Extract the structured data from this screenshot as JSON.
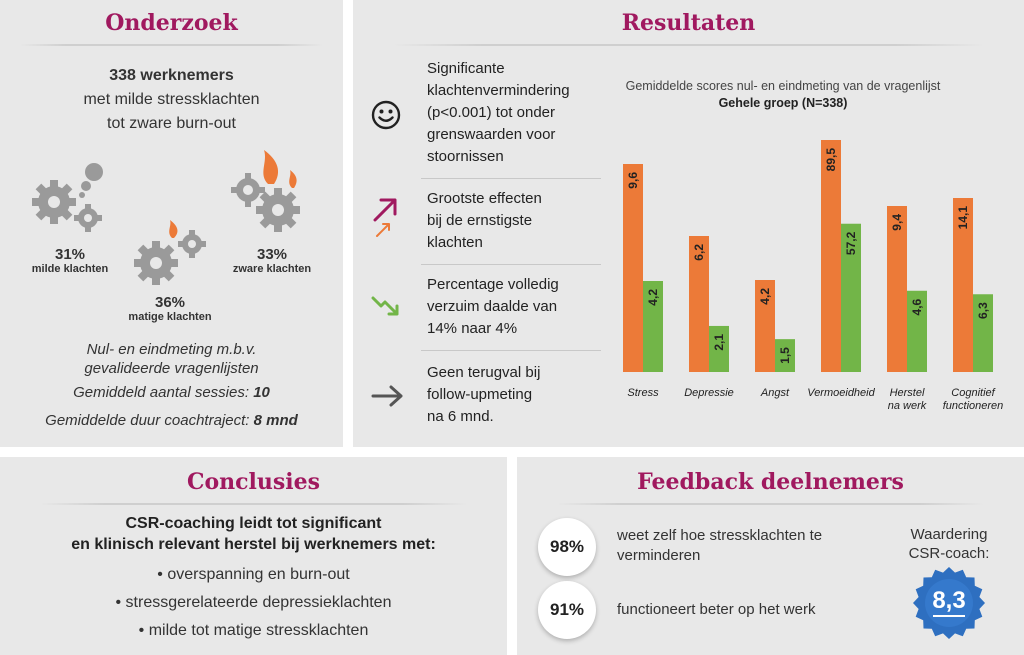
{
  "onderzoek": {
    "title": "Onderzoek",
    "count": "338 werknemers",
    "desc_line1": "met milde stressklachten",
    "desc_line2": "tot zware burn-out",
    "groups": [
      {
        "pct": "31%",
        "label": "milde klachten"
      },
      {
        "pct": "36%",
        "label": "matige klachten"
      },
      {
        "pct": "33%",
        "label": "zware klachten"
      }
    ],
    "method_line1": "Nul- en eindmeting m.b.v.",
    "method_line2": "gevalideerde vragenlijsten",
    "sessions_label": "Gemiddeld aantal sessies: ",
    "sessions_value": "10",
    "duration_label": "Gemiddelde duur coachtraject: ",
    "duration_value": "8 mnd"
  },
  "resultaten": {
    "title": "Resultaten",
    "items": [
      {
        "icon": "smiley-icon",
        "lines": [
          "Significante",
          "klachtenvermindering",
          "(p<0.001) tot onder",
          "grenswaarden voor",
          "stoornissen"
        ]
      },
      {
        "icon": "arrow-up-right-icon",
        "lines": [
          "Grootste effecten",
          "bij de ernstigste",
          "klachten"
        ]
      },
      {
        "icon": "arrow-down-right-icon",
        "lines": [
          "Percentage volledig",
          "verzuim daalde van",
          "14% naar 4%"
        ]
      },
      {
        "icon": "arrow-right-icon",
        "lines": [
          "Geen terugval bij",
          "follow-upmeting",
          "na 6 mnd."
        ]
      }
    ]
  },
  "chart_data": {
    "type": "bar",
    "title": "Gemiddelde scores nul- en eindmeting van de vragenlijst",
    "subtitle": "Gehele groep (N=338)",
    "categories": [
      "Stress",
      "Depressie",
      "Angst",
      "Vermoeidheid",
      "Herstel na werk",
      "Cognitief functioneren"
    ],
    "category_lines": [
      [
        "Stress"
      ],
      [
        "Depressie"
      ],
      [
        "Angst"
      ],
      [
        "Vermoeidheid"
      ],
      [
        "Herstel",
        "na werk"
      ],
      [
        "Cognitief",
        "functioneren"
      ]
    ],
    "series": [
      {
        "values": [
          9.6,
          6.2,
          4.2,
          89.5,
          9.4,
          14.1
        ],
        "labels": [
          "9,6",
          "6,2",
          "4,2",
          "89,5",
          "9,4",
          "14,1"
        ],
        "color": "#ec7a38"
      },
      {
        "values": [
          4.2,
          2.1,
          1.5,
          57.2,
          4.6,
          6.3
        ],
        "labels": [
          "4,2",
          "2,1",
          "1,5",
          "57,2",
          "4,6",
          "6,3"
        ],
        "color": "#72b548"
      }
    ],
    "legend": false,
    "grid": false
  },
  "conclusies": {
    "title": "Conclusies",
    "line1": "CSR-coaching leidt tot significant",
    "line2": "en klinisch relevant herstel bij werknemers met:",
    "bullets": [
      "• overspanning en burn-out",
      "• stressgerelateerde depressieklachten",
      "• milde tot matige stressklachten"
    ]
  },
  "feedback": {
    "title": "Feedback deelnemers",
    "items": [
      {
        "pct": "98%",
        "line1": "weet zelf hoe stressklachten te",
        "line2": "verminderen"
      },
      {
        "pct": "91%",
        "line1": "functioneert beter op het werk",
        "line2": ""
      }
    ],
    "rating_line1": "Waardering",
    "rating_line2": "CSR-coach:",
    "rating_value": "8,3"
  },
  "colors": {
    "accent": "#a0195f",
    "orange": "#ec7a38",
    "green": "#72b548",
    "badge": "#2e6fc0"
  }
}
